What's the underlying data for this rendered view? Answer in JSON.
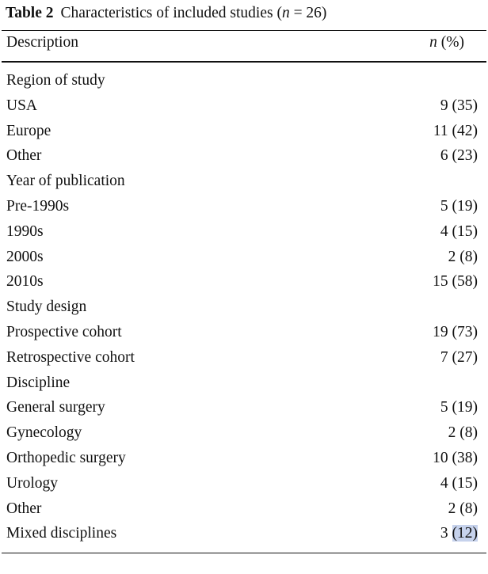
{
  "table": {
    "label": "Table 2",
    "title_prefix": "Characteristics of included studies (",
    "title_n": "n",
    "title_suffix": " = 26)",
    "header": {
      "description": "Description",
      "n_italic": "n",
      "n_pct": " (%)"
    },
    "rows": [
      {
        "description": "Region of study",
        "count": "",
        "pct": ""
      },
      {
        "description": "USA",
        "count": "9",
        "pct": "(35)"
      },
      {
        "description": "Europe",
        "count": "11",
        "pct": "(42)"
      },
      {
        "description": "Other",
        "count": "6",
        "pct": "(23)"
      },
      {
        "description": "Year of publication",
        "count": "",
        "pct": ""
      },
      {
        "description": "Pre-1990s",
        "count": "5",
        "pct": "(19)"
      },
      {
        "description": "1990s",
        "count": "4",
        "pct": "(15)"
      },
      {
        "description": "2000s",
        "count": "2",
        "pct": "(8)"
      },
      {
        "description": "2010s",
        "count": "15",
        "pct": "(58)"
      },
      {
        "description": "Study design",
        "count": "",
        "pct": ""
      },
      {
        "description": "Prospective cohort",
        "count": "19",
        "pct": "(73)"
      },
      {
        "description": "Retrospective cohort",
        "count": "7",
        "pct": "(27)"
      },
      {
        "description": "Discipline",
        "count": "",
        "pct": ""
      },
      {
        "description": "General surgery",
        "count": "5",
        "pct": "(19)"
      },
      {
        "description": "Gynecology",
        "count": "2",
        "pct": "(8)"
      },
      {
        "description": "Orthopedic surgery",
        "count": "10",
        "pct": "(38)"
      },
      {
        "description": "Urology",
        "count": "4",
        "pct": "(15)"
      },
      {
        "description": "Other",
        "count": "2",
        "pct": "(8)"
      },
      {
        "description": "Mixed disciplines",
        "count": "3",
        "pct": "(12)",
        "highlight": "#c6d2ec"
      }
    ]
  }
}
